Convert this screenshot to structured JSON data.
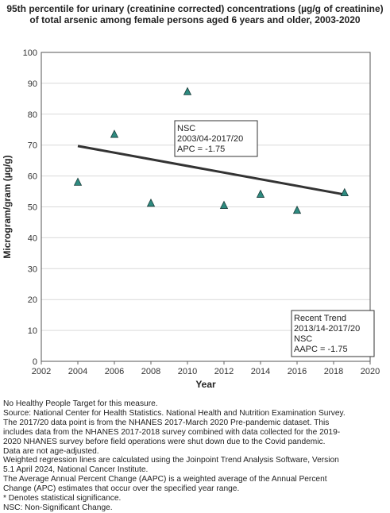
{
  "chart_data": {
    "type": "scatter",
    "title": "95th percentile for urinary (creatinine corrected) concentrations (µg/g of creatinine) of total arsenic among female persons aged 6 years and older, 2003-2020",
    "xlabel": "Year",
    "ylabel": "Microgram/gram (µg/g)",
    "xlim": [
      2002,
      2020
    ],
    "ylim": [
      0,
      100
    ],
    "xticks": [
      "2002",
      "2004",
      "2006",
      "2008",
      "2010",
      "2012",
      "2014",
      "2016",
      "2018",
      "2020"
    ],
    "yticks": [
      "0",
      "10",
      "20",
      "30",
      "40",
      "50",
      "60",
      "70",
      "80",
      "90",
      "100"
    ],
    "grid": "horizontal",
    "series": [
      {
        "marker": "triangle",
        "color": "#2e8b80",
        "x": [
          2004,
          2006,
          2008,
          2010,
          2012,
          2014,
          2016,
          2018.6
        ],
        "y": [
          58.0,
          73.5,
          51.2,
          87.3,
          50.5,
          54.1,
          48.9,
          54.6
        ]
      }
    ],
    "trend": {
      "color": "#333333",
      "x": [
        2004,
        2018.6
      ],
      "y": [
        69.7,
        54.0
      ]
    },
    "annotations": [
      {
        "id": "nsc-box",
        "lines": [
          "NSC",
          "2003/04-2017/20",
          "APC = -1.75"
        ]
      },
      {
        "id": "recent-trend-box",
        "lines": [
          "Recent Trend",
          "2013/14-2017/20",
          "NSC",
          "AAPC = -1.75"
        ]
      }
    ]
  },
  "footnotes": [
    "No Healthy People Target for this measure.",
    "Source: National Center for Health Statistics. National Health and Nutrition Examination Survey.",
    "The 2017/20 data point is from the NHANES 2017-March 2020 Pre-pandemic dataset. This",
    "includes data from the NHANES 2017-2018 survey combined with data collected for the 2019-",
    "2020 NHANES survey before field operations were shut down due to the Covid pandemic.",
    "Data are not age-adjusted.",
    "Weighted regression lines are calculated using the Joinpoint Trend Analysis Software, Version",
    "5.1 April 2024, National Cancer Institute.",
    "The Average Annual Percent Change (AAPC) is a weighted average of the Annual Percent",
    "Change (APC) estimates that occur over the specified year range.",
    "* Denotes statistical significance.",
    "NSC: Non-Significant Change."
  ]
}
